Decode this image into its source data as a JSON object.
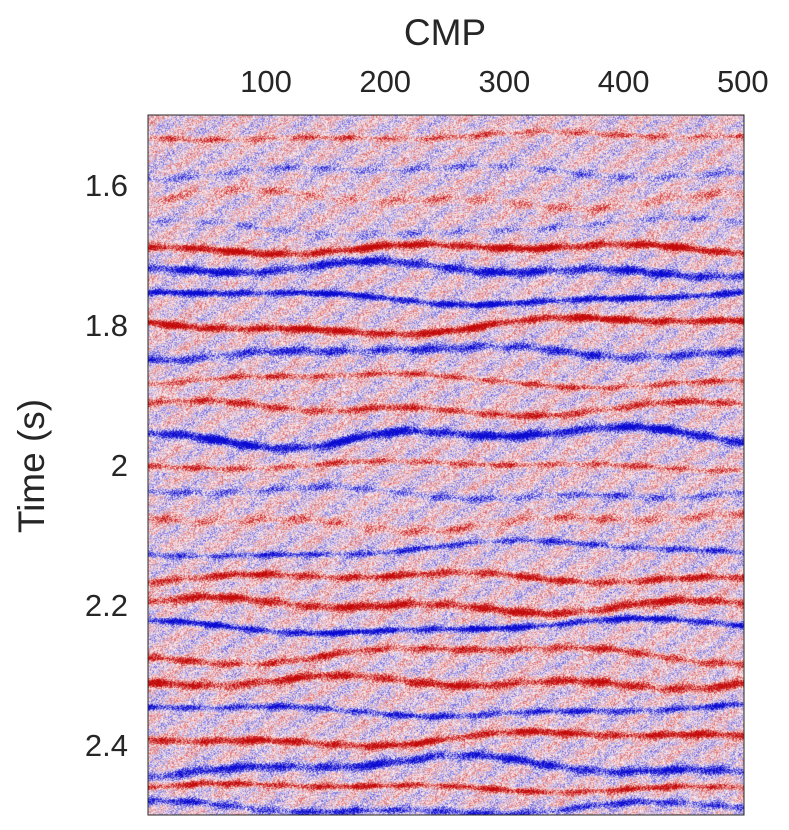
{
  "chart_data": {
    "type": "heatmap",
    "xlabel": "CMP",
    "ylabel": "Time (s)",
    "xlim": [
      1,
      501
    ],
    "ylim": [
      1.5,
      2.5
    ],
    "y_reversed": true,
    "x_axis_position": "top",
    "x_ticks": [
      100,
      200,
      300,
      400,
      500
    ],
    "y_ticks": [
      1.6,
      1.8,
      2.0,
      2.2,
      2.4
    ],
    "x_tick_labels": [
      "100",
      "200",
      "300",
      "400",
      "500"
    ],
    "y_tick_labels": [
      "1.6",
      "1.8",
      "2",
      "2.2",
      "2.4"
    ],
    "colormap": {
      "negative": "#0b0bd2",
      "zero": "#fff2f2",
      "positive": "#c40a0a"
    },
    "grid": false,
    "reflectors": [
      {
        "time": 1.53,
        "polarity": 1,
        "amp": 0.5
      },
      {
        "time": 1.58,
        "polarity": -1,
        "amp": 0.35
      },
      {
        "time": 1.62,
        "polarity": 1,
        "amp": 0.35
      },
      {
        "time": 1.66,
        "polarity": -1,
        "amp": 0.3
      },
      {
        "time": 1.69,
        "polarity": 1,
        "amp": 1.0
      },
      {
        "time": 1.72,
        "polarity": -1,
        "amp": 0.9
      },
      {
        "time": 1.76,
        "polarity": -1,
        "amp": 1.0
      },
      {
        "time": 1.8,
        "polarity": 1,
        "amp": 1.0
      },
      {
        "time": 1.84,
        "polarity": -1,
        "amp": 0.7
      },
      {
        "time": 1.88,
        "polarity": 1,
        "amp": 0.6
      },
      {
        "time": 1.92,
        "polarity": 1,
        "amp": 0.7
      },
      {
        "time": 1.96,
        "polarity": -1,
        "amp": 1.0
      },
      {
        "time": 2.0,
        "polarity": 1,
        "amp": 0.55
      },
      {
        "time": 2.04,
        "polarity": -1,
        "amp": 0.45
      },
      {
        "time": 2.08,
        "polarity": 1,
        "amp": 0.4
      },
      {
        "time": 2.12,
        "polarity": -1,
        "amp": 0.65
      },
      {
        "time": 2.16,
        "polarity": 1,
        "amp": 0.8
      },
      {
        "time": 2.2,
        "polarity": 1,
        "amp": 0.9
      },
      {
        "time": 2.23,
        "polarity": -1,
        "amp": 0.95
      },
      {
        "time": 2.27,
        "polarity": 1,
        "amp": 0.7
      },
      {
        "time": 2.31,
        "polarity": 1,
        "amp": 0.85
      },
      {
        "time": 2.35,
        "polarity": -1,
        "amp": 0.75
      },
      {
        "time": 2.39,
        "polarity": 1,
        "amp": 0.9
      },
      {
        "time": 2.43,
        "polarity": -1,
        "amp": 0.85
      },
      {
        "time": 2.46,
        "polarity": 1,
        "amp": 0.8
      },
      {
        "time": 2.49,
        "polarity": -1,
        "amp": 0.7
      }
    ]
  }
}
